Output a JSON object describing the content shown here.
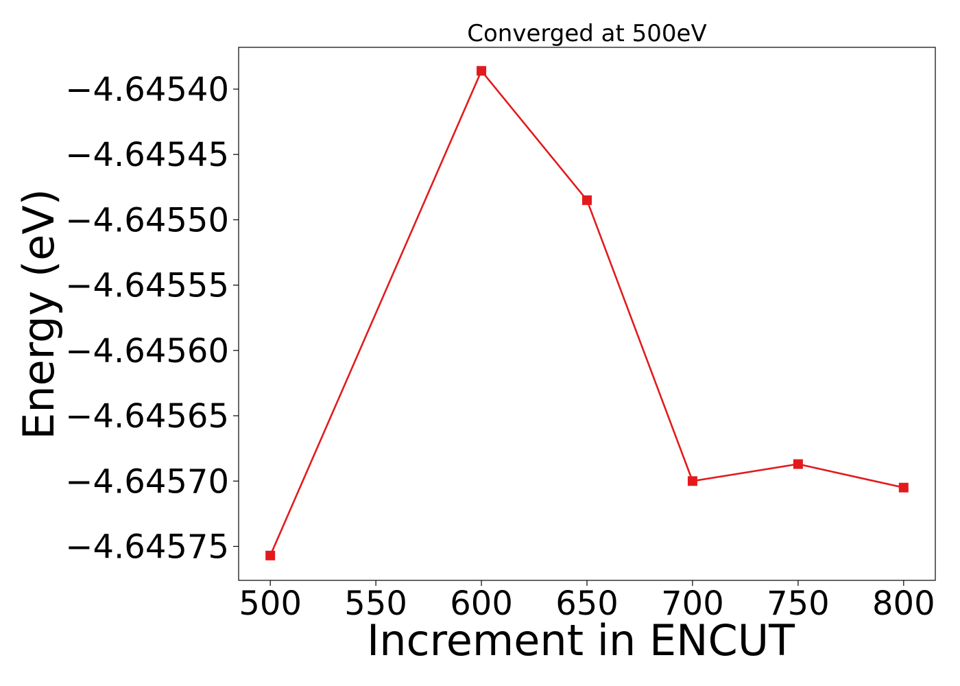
{
  "chart_data": {
    "type": "line",
    "title": "Converged at 500eV",
    "xlabel": "Increment in ENCUT",
    "ylabel": "Energy (eV)",
    "xlim": [
      485,
      815
    ],
    "ylim": [
      -4.645776,
      -4.645368
    ],
    "xticks": [
      500,
      550,
      600,
      650,
      700,
      750,
      800
    ],
    "xtick_labels": [
      "500",
      "550",
      "600",
      "650",
      "700",
      "750",
      "800"
    ],
    "yticks": [
      -4.6454,
      -4.64545,
      -4.6455,
      -4.64555,
      -4.6456,
      -4.64565,
      -4.6457,
      -4.64575
    ],
    "ytick_labels": [
      "−4.64540",
      "−4.64545",
      "−4.64550",
      "−4.64555",
      "−4.64560",
      "−4.64565",
      "−4.64570",
      "−4.64575"
    ],
    "grid": false,
    "marker": "square",
    "series": [
      {
        "color": "#e31a1c",
        "x": [
          500,
          600,
          650,
          700,
          750,
          800
        ],
        "y": [
          -4.645757,
          -4.645386,
          -4.645485,
          -4.6457,
          -4.645687,
          -4.645705
        ]
      }
    ]
  }
}
